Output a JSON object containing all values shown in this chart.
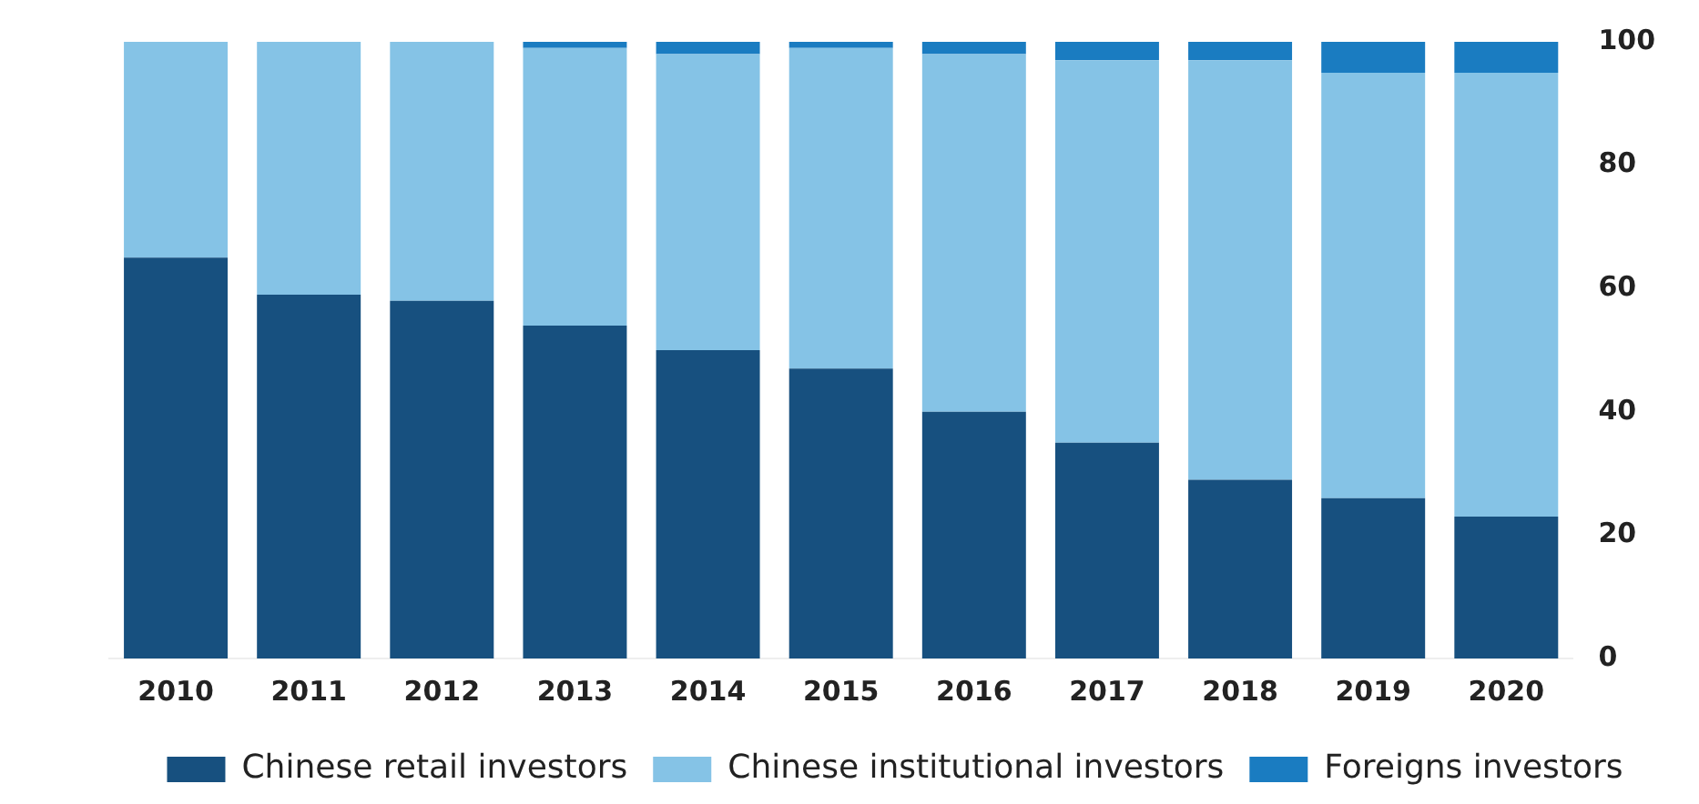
{
  "chart_data": {
    "type": "bar",
    "stacked": true,
    "categories": [
      "2010",
      "2011",
      "2012",
      "2013",
      "2014",
      "2015",
      "2016",
      "2017",
      "2018",
      "2019",
      "2020"
    ],
    "series": [
      {
        "name": "Chinese retail investors",
        "color": "#17507f",
        "values": [
          65,
          59,
          58,
          54,
          50,
          47,
          40,
          35,
          29,
          26,
          23
        ]
      },
      {
        "name": "Chinese institutional investors",
        "color": "#85c3e6",
        "values": [
          35,
          41,
          42,
          45,
          48,
          52,
          58,
          62,
          68,
          69,
          72
        ]
      },
      {
        "name": "Foreigns investors",
        "color": "#1a7cc1",
        "values": [
          0,
          0,
          0,
          1,
          2,
          1,
          2,
          3,
          3,
          5,
          5
        ]
      }
    ],
    "ylim": [
      0,
      100
    ],
    "yticks": [
      0,
      20,
      40,
      60,
      80,
      100
    ],
    "grid": false,
    "legend": "bottom"
  }
}
